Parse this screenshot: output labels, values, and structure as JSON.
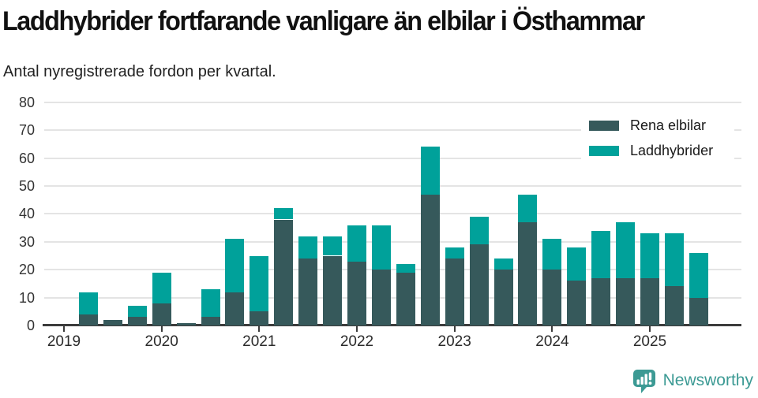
{
  "title": "Laddhybrider fortfarande vanligare än elbilar i Östhammar",
  "subtitle": "Antal nyregistrerade fordon per kvartal.",
  "legend": {
    "items": [
      {
        "label": "Rena elbilar",
        "color": "#36595B"
      },
      {
        "label": "Laddhybrider",
        "color": "#00A19A"
      }
    ]
  },
  "footer": {
    "brand": "Newsworthy",
    "brand_color": "#3C9A94",
    "logo_icon": "bar-chart-speech-bubble-icon"
  },
  "chart_data": {
    "type": "bar",
    "stacked": true,
    "title": "Laddhybrider fortfarande vanligare än elbilar i Östhammar",
    "subtitle": "Antal nyregistrerade fordon per kvartal.",
    "xlabel": "",
    "ylabel": "",
    "ylim": [
      0,
      80
    ],
    "yticks": [
      0,
      10,
      20,
      30,
      40,
      50,
      60,
      70,
      80
    ],
    "grid": "horizontal",
    "legend_position": "top-right",
    "categories": [
      "2019 Q1",
      "2019 Q2",
      "2019 Q3",
      "2019 Q4",
      "2020 Q1",
      "2020 Q2",
      "2020 Q3",
      "2020 Q4",
      "2021 Q1",
      "2021 Q2",
      "2021 Q3",
      "2021 Q4",
      "2022 Q1",
      "2022 Q2",
      "2022 Q3",
      "2022 Q4",
      "2023 Q1",
      "2023 Q2",
      "2023 Q3",
      "2023 Q4",
      "2024 Q1",
      "2024 Q2",
      "2024 Q3",
      "2024 Q4",
      "2025 Q1",
      "2025 Q2",
      "2025 Q3"
    ],
    "series": [
      {
        "name": "Rena elbilar",
        "color": "#36595B",
        "values": [
          0,
          4,
          2,
          3,
          8,
          1,
          3,
          12,
          5,
          38,
          24,
          25,
          23,
          20,
          19,
          47,
          24,
          29,
          20,
          37,
          20,
          16,
          17,
          17,
          17,
          14,
          10
        ]
      },
      {
        "name": "Laddhybrider",
        "color": "#00A19A",
        "values": [
          0,
          8,
          0,
          4,
          11,
          0,
          10,
          19,
          20,
          4,
          8,
          7,
          13,
          16,
          3,
          17,
          4,
          10,
          4,
          10,
          11,
          12,
          17,
          20,
          16,
          19,
          16
        ]
      }
    ],
    "x_axis_year_labels": [
      {
        "label": "2019",
        "quarter_index": 0
      },
      {
        "label": "2020",
        "quarter_index": 4
      },
      {
        "label": "2021",
        "quarter_index": 8
      },
      {
        "label": "2022",
        "quarter_index": 12
      },
      {
        "label": "2023",
        "quarter_index": 16
      },
      {
        "label": "2024",
        "quarter_index": 20
      },
      {
        "label": "2025",
        "quarter_index": 24
      }
    ]
  }
}
